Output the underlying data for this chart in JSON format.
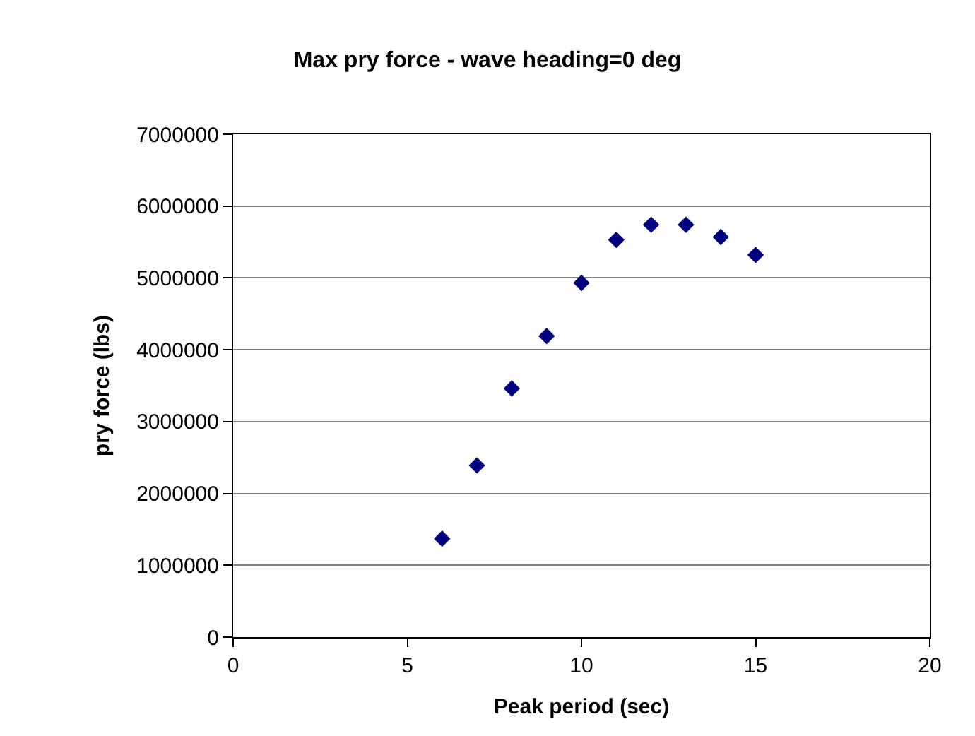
{
  "chart_data": {
    "type": "scatter",
    "title": "Max pry force - wave heading=0 deg",
    "xlabel": "Peak period (sec)",
    "ylabel": "pry force (lbs)",
    "x": [
      6,
      7,
      8,
      9,
      10,
      11,
      12,
      13,
      14,
      15
    ],
    "series": [
      {
        "color": "#000080",
        "values": [
          1370000,
          2390000,
          3460000,
          4190000,
          4930000,
          5530000,
          5740000,
          5740000,
          5570000,
          5320000
        ]
      }
    ],
    "xlim": [
      0,
      20
    ],
    "xticks": [
      0,
      5,
      10,
      15,
      20
    ],
    "ylim": [
      0,
      7000000
    ],
    "yticks": [
      0,
      1000000,
      2000000,
      3000000,
      4000000,
      5000000,
      6000000,
      7000000
    ],
    "grid": "y",
    "marker": "diamond",
    "legend": false
  }
}
